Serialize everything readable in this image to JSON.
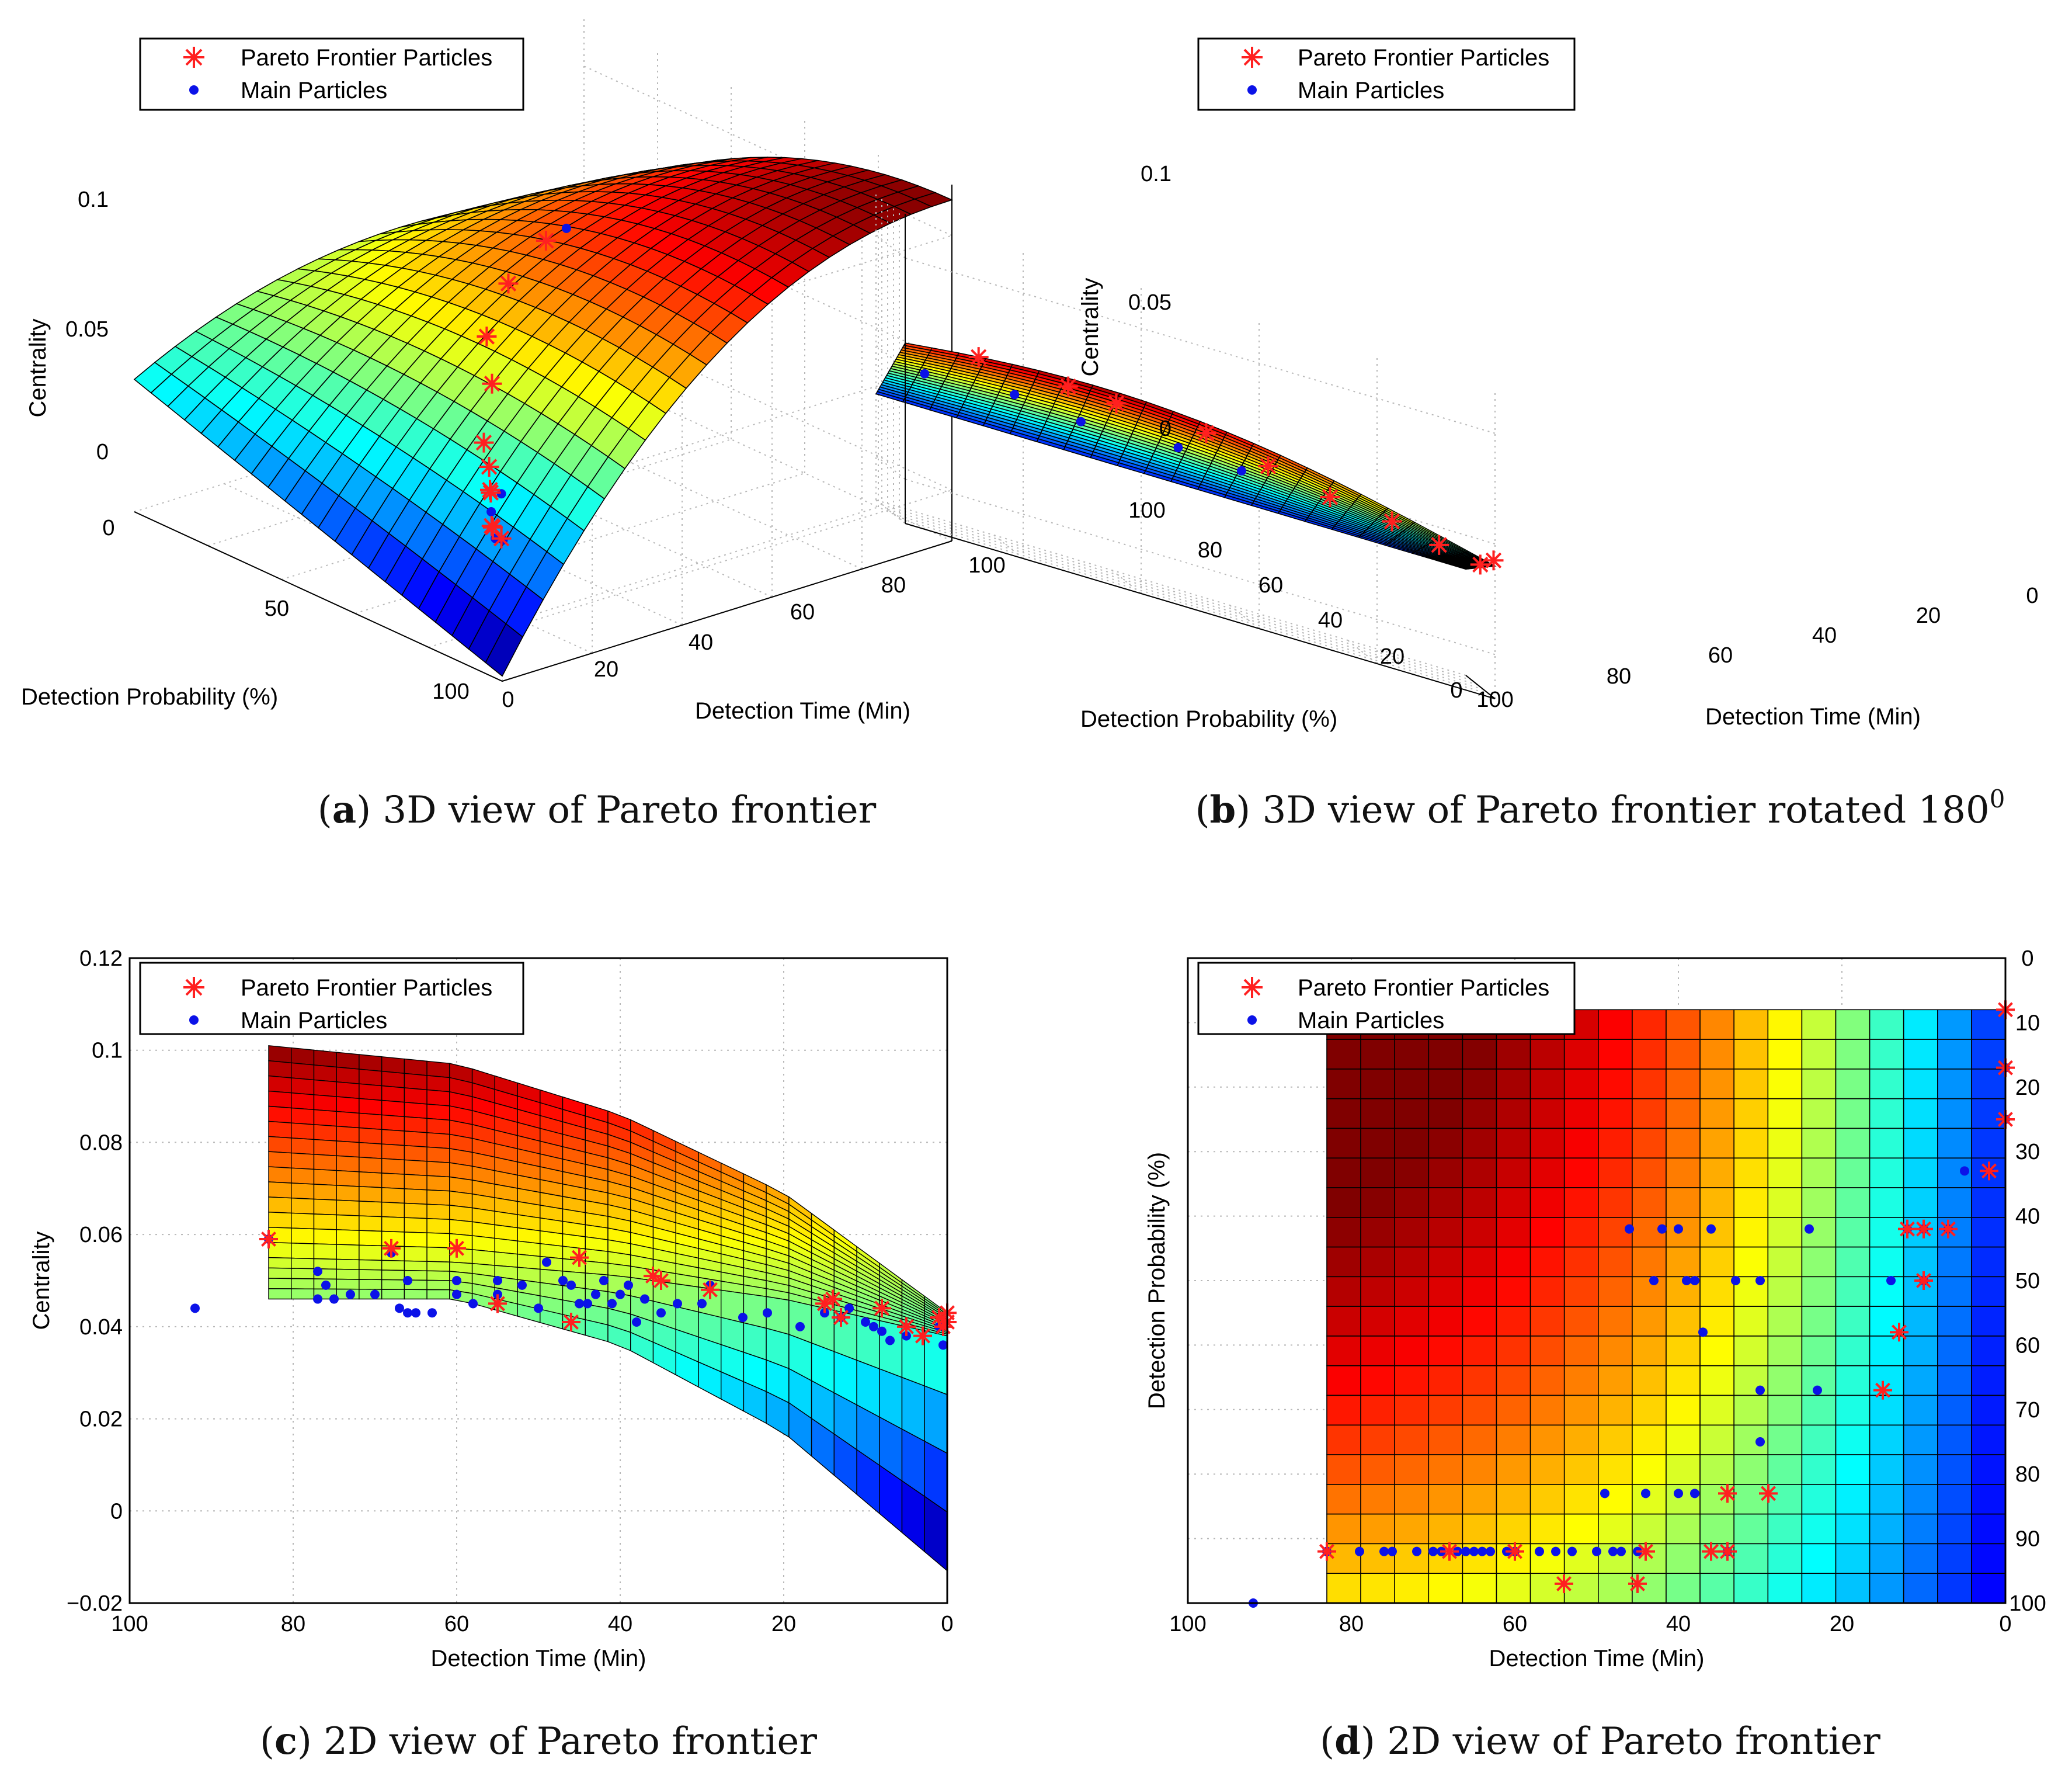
{
  "legend": {
    "pareto": "Pareto Frontier Particles",
    "main": "Main Particles"
  },
  "colors": {
    "pareto": "#ff2020",
    "main": "#0b12e8",
    "grid": "#b8b8b8"
  },
  "captions": {
    "a": {
      "letter": "a",
      "text": "3D view of Pareto frontier"
    },
    "b": {
      "letter": "b",
      "text": "3D view of Pareto frontier rotated 180",
      "sup": "0"
    },
    "c": {
      "letter": "c",
      "text": "2D view of Pareto frontier"
    },
    "d": {
      "letter": "d",
      "text": "2D view of Pareto frontier"
    }
  },
  "chart_data": [
    {
      "id": "a",
      "type": "surface3d",
      "title": "",
      "xlabel": "Detection Time (Min)",
      "ylabel": "Detection Probability (%)",
      "zlabel": "Centrality",
      "x_ticks": [
        "0",
        "20",
        "40",
        "60",
        "80",
        "100"
      ],
      "y_ticks": [
        "0",
        "50",
        "100"
      ],
      "z_ticks": [
        "0",
        "0.05",
        "0.1"
      ],
      "xlim": [
        0,
        100
      ],
      "ylim": [
        0,
        100
      ],
      "zlim": [
        -0.02,
        0.12
      ],
      "grid": true,
      "legend_position": "top-left",
      "pareto_particles": [
        [
          2,
          5,
          0.036
        ],
        [
          8,
          10,
          0.025
        ],
        [
          14,
          20,
          0.02
        ],
        [
          22,
          30,
          0.022
        ],
        [
          30,
          40,
          0.012
        ],
        [
          38,
          50,
          0.01
        ],
        [
          45,
          60,
          0.009
        ],
        [
          55,
          70,
          0.02
        ],
        [
          62,
          80,
          0.028
        ],
        [
          75,
          90,
          0.035
        ],
        [
          85,
          92,
          0.045
        ]
      ],
      "main_particles": [
        [
          5,
          8,
          0.028
        ],
        [
          10,
          12,
          0.022
        ],
        [
          18,
          25,
          0.02
        ],
        [
          26,
          32,
          0.018
        ],
        [
          92,
          95,
          0.044
        ]
      ]
    },
    {
      "id": "b",
      "type": "surface3d",
      "title": "",
      "xlabel": "Detection Time (Min)",
      "ylabel": "Detection Probability (%)",
      "zlabel": "Centrality",
      "x_ticks": [
        "100",
        "80",
        "60",
        "40",
        "20",
        "0"
      ],
      "y_ticks": [
        "0",
        "20",
        "40",
        "60",
        "80",
        "100"
      ],
      "z_ticks": [
        "0",
        "0.05",
        "0.1"
      ],
      "xlim": [
        0,
        100
      ],
      "ylim": [
        0,
        100
      ],
      "zlim": [
        -0.02,
        0.12
      ],
      "grid": true,
      "legend_position": "top-left",
      "pareto_particles": [
        [
          83,
          92,
          0.059
        ],
        [
          68,
          88,
          0.058
        ],
        [
          60,
          85,
          0.057
        ],
        [
          45,
          80,
          0.056
        ],
        [
          35,
          70,
          0.05
        ],
        [
          25,
          60,
          0.045
        ],
        [
          15,
          50,
          0.043
        ],
        [
          8,
          30,
          0.04
        ],
        [
          2,
          10,
          0.038
        ],
        [
          0,
          5,
          0.042
        ]
      ],
      "main_particles": [
        [
          92,
          95,
          0.044
        ],
        [
          77,
          90,
          0.047
        ],
        [
          66,
          85,
          0.044
        ],
        [
          50,
          75,
          0.046
        ],
        [
          40,
          60,
          0.045
        ]
      ]
    },
    {
      "id": "c",
      "type": "surface_side",
      "title": "",
      "xlabel": "Detection Time (Min)",
      "ylabel": "Centrality",
      "xlim": [
        100,
        0
      ],
      "ylim": [
        -0.02,
        0.12
      ],
      "x_ticks": [
        100,
        80,
        60,
        40,
        20,
        0
      ],
      "y_ticks": [
        -0.02,
        0,
        0.02,
        0.04,
        0.06,
        0.08,
        0.1,
        0.12
      ],
      "y_tick_labels": [
        "−0.02",
        "0",
        "0.02",
        "0.04",
        "0.06",
        "0.08",
        "0.1",
        "0.12"
      ],
      "grid": true,
      "legend_position": "top-left",
      "surface_top": [
        [
          83,
          0.101
        ],
        [
          60,
          0.097
        ],
        [
          40,
          0.086
        ],
        [
          20,
          0.069
        ],
        [
          0,
          0.043
        ]
      ],
      "surface_upper_front": [
        [
          83,
          0.055
        ],
        [
          60,
          0.054
        ],
        [
          40,
          0.051
        ],
        [
          20,
          0.046
        ],
        [
          0,
          0.038
        ]
      ],
      "surface_lower_front": [
        [
          83,
          0.046
        ],
        [
          60,
          0.046
        ],
        [
          40,
          0.036
        ],
        [
          20,
          0.017
        ],
        [
          0,
          -0.013
        ]
      ],
      "pareto_particles": [
        [
          83,
          0.059
        ],
        [
          68,
          0.057
        ],
        [
          60,
          0.057
        ],
        [
          55,
          0.045
        ],
        [
          46,
          0.041
        ],
        [
          45,
          0.055
        ],
        [
          36,
          0.051
        ],
        [
          35,
          0.05
        ],
        [
          29,
          0.048
        ],
        [
          15,
          0.045
        ],
        [
          14,
          0.046
        ],
        [
          13,
          0.042
        ],
        [
          8,
          0.044
        ],
        [
          5,
          0.04
        ],
        [
          3,
          0.038
        ],
        [
          1,
          0.042
        ],
        [
          0.5,
          0.04
        ],
        [
          0,
          0.043
        ],
        [
          0,
          0.041
        ]
      ],
      "main_particles": [
        [
          92,
          0.044
        ],
        [
          83,
          0.059
        ],
        [
          77,
          0.052
        ],
        [
          77,
          0.046
        ],
        [
          76,
          0.049
        ],
        [
          75,
          0.046
        ],
        [
          73,
          0.047
        ],
        [
          70,
          0.047
        ],
        [
          68,
          0.056
        ],
        [
          67,
          0.044
        ],
        [
          66,
          0.05
        ],
        [
          66,
          0.043
        ],
        [
          65,
          0.043
        ],
        [
          63,
          0.043
        ],
        [
          60,
          0.05
        ],
        [
          60,
          0.047
        ],
        [
          58,
          0.045
        ],
        [
          55,
          0.047
        ],
        [
          55,
          0.05
        ],
        [
          52,
          0.049
        ],
        [
          50,
          0.044
        ],
        [
          49,
          0.054
        ],
        [
          47,
          0.05
        ],
        [
          46,
          0.049
        ],
        [
          45,
          0.045
        ],
        [
          44,
          0.045
        ],
        [
          43,
          0.047
        ],
        [
          42,
          0.05
        ],
        [
          41,
          0.045
        ],
        [
          40,
          0.047
        ],
        [
          39,
          0.049
        ],
        [
          38,
          0.041
        ],
        [
          37,
          0.046
        ],
        [
          35,
          0.043
        ],
        [
          33,
          0.045
        ],
        [
          30,
          0.045
        ],
        [
          29,
          0.049
        ],
        [
          25,
          0.042
        ],
        [
          22,
          0.043
        ],
        [
          18,
          0.04
        ],
        [
          15,
          0.043
        ],
        [
          13,
          0.042
        ],
        [
          12,
          0.044
        ],
        [
          10,
          0.041
        ],
        [
          9,
          0.04
        ],
        [
          8,
          0.039
        ],
        [
          7,
          0.037
        ],
        [
          5,
          0.038
        ],
        [
          1,
          0.04
        ],
        [
          0.5,
          0.036
        ]
      ]
    },
    {
      "id": "d",
      "type": "heatmap",
      "title": "",
      "xlabel": "Detection Time (Min)",
      "ylabel": "Detection Probability (%)",
      "xlim": [
        100,
        0
      ],
      "ylim": [
        0,
        100
      ],
      "x_ticks": [
        100,
        80,
        60,
        40,
        20,
        0
      ],
      "y_ticks": [
        0,
        10,
        20,
        30,
        40,
        50,
        60,
        70,
        80,
        90,
        100
      ],
      "y_axis_side": "right",
      "grid": true,
      "legend_position": "top-left",
      "surface_extent": {
        "x": [
          0,
          83
        ],
        "y": [
          8,
          100
        ]
      },
      "pareto_particles": [
        [
          0,
          8
        ],
        [
          0,
          17
        ],
        [
          0,
          25
        ],
        [
          2,
          33
        ],
        [
          7,
          42
        ],
        [
          10,
          42
        ],
        [
          12,
          42
        ],
        [
          10,
          50
        ],
        [
          13,
          58
        ],
        [
          15,
          67
        ],
        [
          29,
          83
        ],
        [
          34,
          83
        ],
        [
          34,
          92
        ],
        [
          36,
          92
        ],
        [
          44,
          92
        ],
        [
          45,
          97
        ],
        [
          54,
          97
        ],
        [
          60,
          92
        ],
        [
          68,
          92
        ],
        [
          83,
          92
        ]
      ],
      "main_particles": [
        [
          0,
          17
        ],
        [
          0,
          25
        ],
        [
          2,
          33
        ],
        [
          5,
          33
        ],
        [
          7,
          42
        ],
        [
          10,
          42
        ],
        [
          12,
          42
        ],
        [
          24,
          42
        ],
        [
          36,
          42
        ],
        [
          40,
          42
        ],
        [
          42,
          42
        ],
        [
          46,
          42
        ],
        [
          10,
          50
        ],
        [
          14,
          50
        ],
        [
          30,
          50
        ],
        [
          33,
          50
        ],
        [
          38,
          50
        ],
        [
          39,
          50
        ],
        [
          43,
          50
        ],
        [
          37,
          58
        ],
        [
          30,
          67
        ],
        [
          23,
          67
        ],
        [
          30,
          75
        ],
        [
          38,
          83
        ],
        [
          40,
          83
        ],
        [
          44,
          83
        ],
        [
          49,
          83
        ],
        [
          92,
          100
        ],
        [
          34,
          92
        ],
        [
          45,
          92
        ],
        [
          47,
          92
        ],
        [
          48,
          92
        ],
        [
          50,
          92
        ],
        [
          53,
          92
        ],
        [
          55,
          92
        ],
        [
          57,
          92
        ],
        [
          60,
          92
        ],
        [
          61,
          92
        ],
        [
          63,
          92
        ],
        [
          64,
          92
        ],
        [
          65,
          92
        ],
        [
          66,
          92
        ],
        [
          67,
          92
        ],
        [
          69,
          92
        ],
        [
          70,
          92
        ],
        [
          72,
          92
        ],
        [
          75,
          92
        ],
        [
          76,
          92
        ],
        [
          79,
          92
        ],
        [
          83,
          92
        ]
      ]
    }
  ]
}
